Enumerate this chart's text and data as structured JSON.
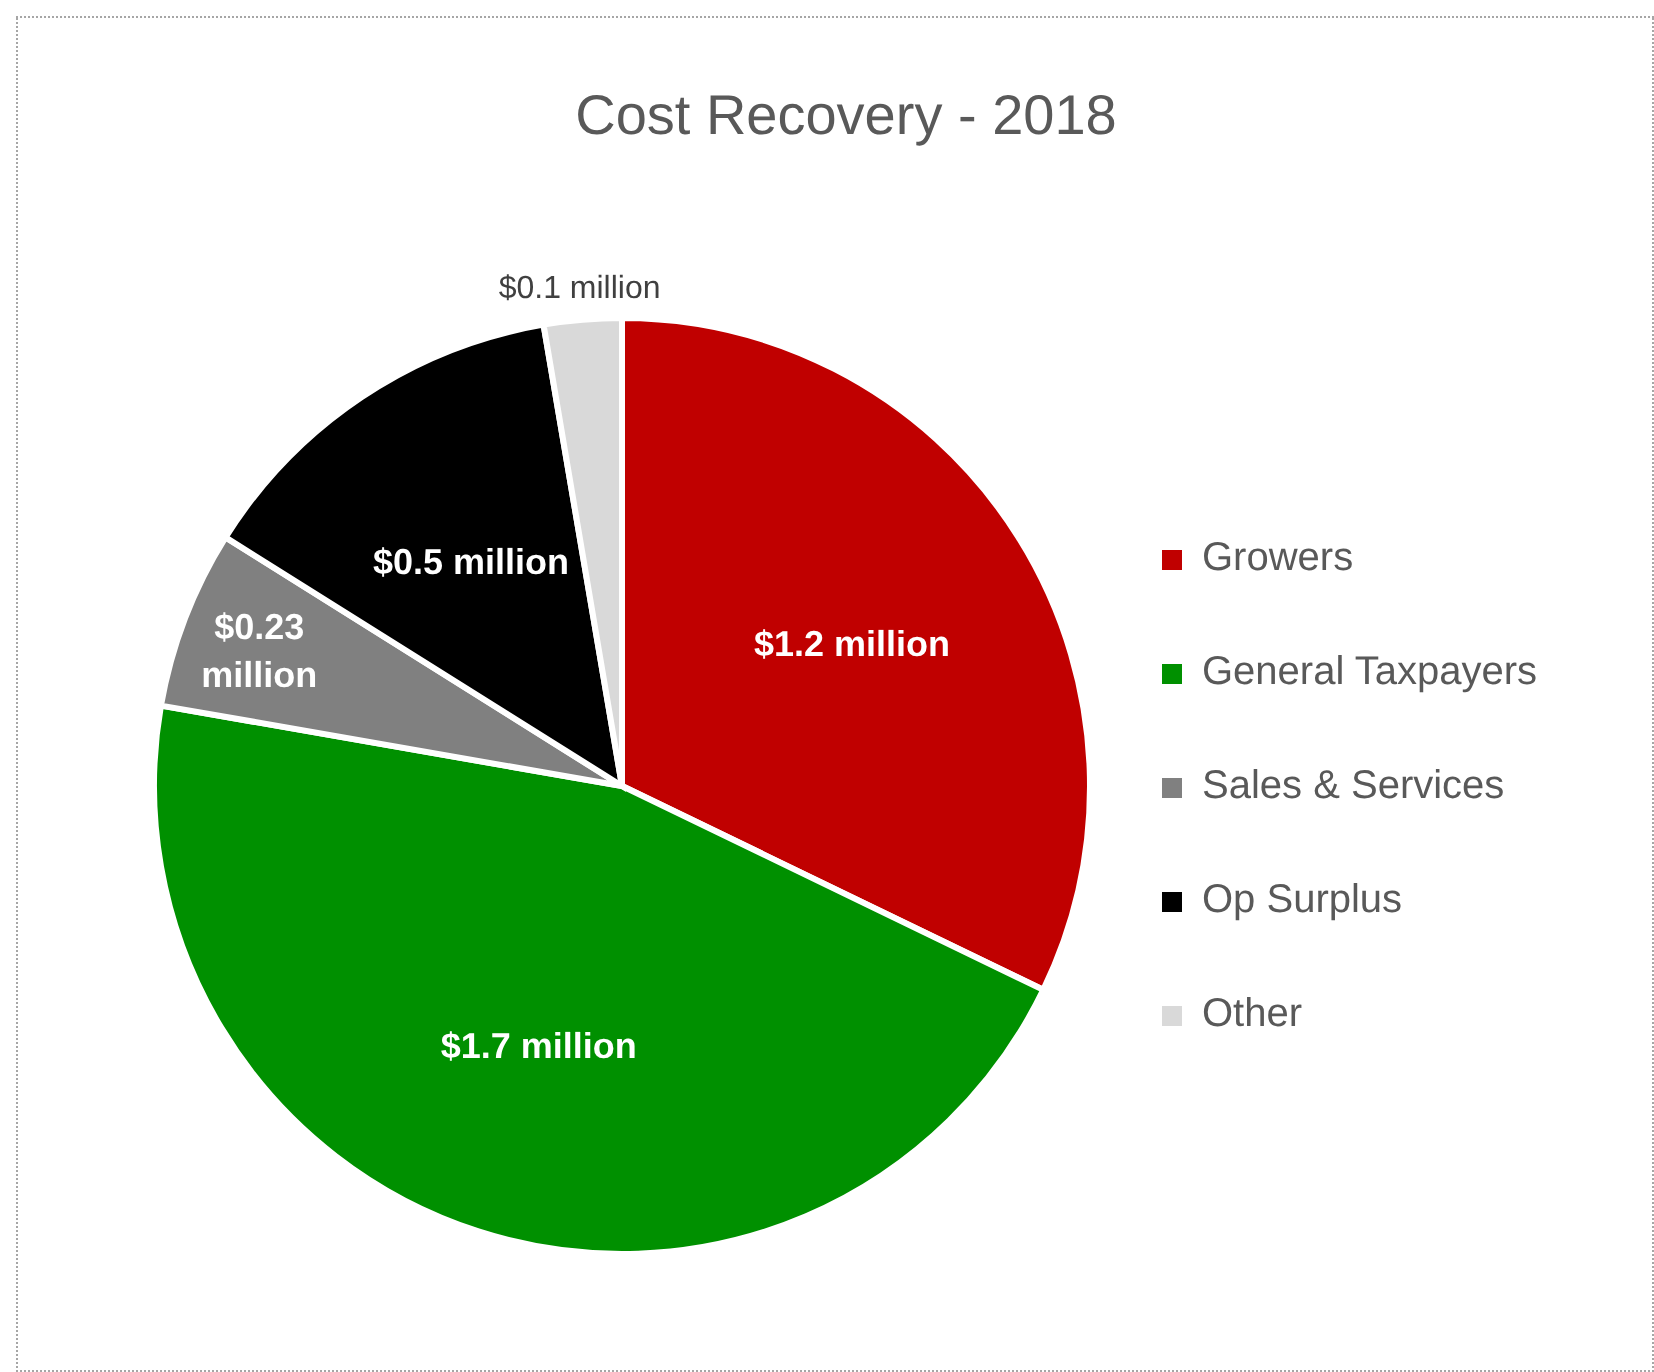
{
  "chart_data": {
    "type": "pie",
    "title": "Cost Recovery - 2018",
    "categories": [
      "Growers",
      "General Taxpayers",
      "Sales & Services",
      "Op Surplus",
      "Other"
    ],
    "values": [
      1.2,
      1.7,
      0.23,
      0.5,
      0.1
    ],
    "value_labels": [
      "$1.2 million",
      "$1.7 million",
      "$0.23 million",
      "$0.5 million",
      "$0.1 million"
    ],
    "colors": [
      "#c00000",
      "#009000",
      "#808080",
      "#000000",
      "#d9d9d9"
    ],
    "legend": "right"
  }
}
